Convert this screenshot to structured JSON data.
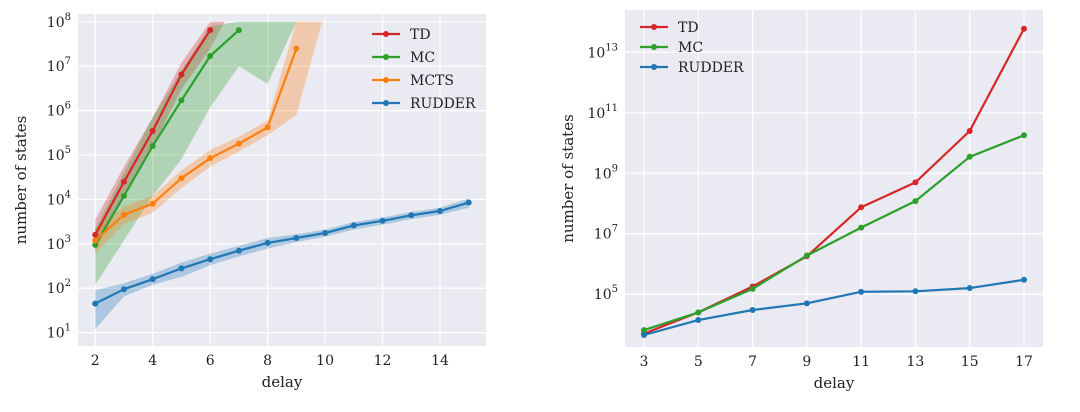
{
  "chart_data": [
    {
      "type": "line",
      "title": "",
      "xlabel": "delay",
      "ylabel": "number of states",
      "yscale": "log",
      "xlim": [
        1.4,
        15.6
      ],
      "ylim": [
        5,
        150000000
      ],
      "grid": true,
      "legend_position": "top-right",
      "xticks": [
        2,
        4,
        6,
        8,
        10,
        12,
        14
      ],
      "xtick_labels": [
        "2",
        "4",
        "6",
        "8",
        "10",
        "12",
        "14"
      ],
      "yticks": [
        10,
        100,
        1000,
        10000,
        100000,
        1000000,
        10000000,
        100000000
      ],
      "ytick_labels": [
        {
          "base": "10",
          "exp": "1"
        },
        {
          "base": "10",
          "exp": "2"
        },
        {
          "base": "10",
          "exp": "3"
        },
        {
          "base": "10",
          "exp": "4"
        },
        {
          "base": "10",
          "exp": "5"
        },
        {
          "base": "10",
          "exp": "6"
        },
        {
          "base": "10",
          "exp": "7"
        },
        {
          "base": "10",
          "exp": "8"
        }
      ],
      "series": [
        {
          "name": "TD",
          "color": "#d62728",
          "x": [
            2,
            3,
            4,
            5,
            6
          ],
          "y": [
            1600,
            25000,
            350000,
            6500000,
            65000000
          ],
          "band": {
            "x": [
              2,
              3,
              4,
              5,
              6,
              6.5,
              8
            ],
            "low": [
              700,
              12000,
              150000,
              3000000,
              25000000,
              100000000,
              100000000
            ],
            "high": [
              3500,
              55000,
              700000,
              12000000,
              100000000,
              100000000,
              100000000
            ]
          }
        },
        {
          "name": "MC",
          "color": "#2ca02c",
          "x": [
            2,
            3,
            4,
            5,
            6,
            7
          ],
          "y": [
            950,
            12000,
            160000,
            1700000,
            17000000,
            65000000
          ],
          "band": {
            "x": [
              2,
              3,
              4,
              5,
              6,
              7,
              8,
              9
            ],
            "low": [
              120,
              1200,
              12000,
              80000,
              1200000,
              10000000,
              4000000,
              100000000
            ],
            "high": [
              2200,
              40000,
              700000,
              8000000,
              80000000,
              100000000,
              100000000,
              100000000
            ]
          }
        },
        {
          "name": "MCTS",
          "color": "#ff7f0e",
          "x": [
            2,
            3,
            4,
            5,
            6,
            7,
            8,
            9
          ],
          "y": [
            1200,
            4500,
            8000,
            30000,
            85000,
            180000,
            420000,
            25000000
          ],
          "band": {
            "x": [
              2,
              3,
              4,
              5,
              6,
              7,
              8,
              9,
              9.9
            ],
            "low": [
              600,
              2800,
              5000,
              18000,
              55000,
              120000,
              280000,
              800000,
              100000000
            ],
            "high": [
              2200,
              7000,
              12000,
              45000,
              130000,
              260000,
              600000,
              100000000,
              100000000
            ]
          }
        },
        {
          "name": "RUDDER",
          "color": "#1f77b4",
          "x": [
            2,
            3,
            4,
            5,
            6,
            7,
            8,
            9,
            10,
            11,
            12,
            13,
            14,
            15
          ],
          "y": [
            45,
            95,
            160,
            280,
            450,
            700,
            1050,
            1350,
            1750,
            2600,
            3300,
            4400,
            5500,
            8500
          ],
          "band": {
            "x": [
              2,
              3,
              4,
              5,
              6,
              7,
              8,
              9,
              10,
              11,
              12,
              13,
              14,
              15
            ],
            "low": [
              12,
              65,
              120,
              180,
              330,
              520,
              780,
              1100,
              1450,
              2100,
              2700,
              3600,
              4500,
              6500
            ],
            "high": [
              90,
              130,
              210,
              380,
              600,
              900,
              1350,
              1650,
              2100,
              3100,
              3900,
              5200,
              6500,
              10500
            ]
          }
        }
      ]
    },
    {
      "type": "line",
      "title": "",
      "xlabel": "delay",
      "ylabel": "number of states",
      "yscale": "log",
      "xlim": [
        2.3,
        17.7
      ],
      "ylim": [
        1800,
        250000000000000
      ],
      "grid": true,
      "legend_position": "top-left",
      "xticks": [
        3,
        5,
        7,
        9,
        11,
        13,
        15,
        17
      ],
      "xtick_labels": [
        "3",
        "5",
        "7",
        "9",
        "11",
        "13",
        "15",
        "17"
      ],
      "yticks": [
        100000,
        10000000,
        1000000000,
        100000000000,
        10000000000000
      ],
      "ytick_labels": [
        {
          "base": "10",
          "exp": "5"
        },
        {
          "base": "10",
          "exp": "7"
        },
        {
          "base": "10",
          "exp": "9"
        },
        {
          "base": "10",
          "exp": "11"
        },
        {
          "base": "10",
          "exp": "13"
        }
      ],
      "series": [
        {
          "name": "TD",
          "color": "#d62728",
          "x": [
            3,
            5,
            7,
            9,
            11,
            13,
            15,
            17
          ],
          "y": [
            5000,
            25000,
            180000,
            1800000,
            75000000,
            500000000,
            25000000000,
            60000000000000
          ]
        },
        {
          "name": "MC",
          "color": "#2ca02c",
          "x": [
            3,
            5,
            7,
            9,
            11,
            13,
            15,
            17
          ],
          "y": [
            6500,
            25000,
            150000,
            1900000,
            16000000,
            120000000,
            3500000000,
            18000000000
          ]
        },
        {
          "name": "RUDDER",
          "color": "#1f77b4",
          "x": [
            3,
            5,
            7,
            9,
            11,
            13,
            15,
            17
          ],
          "y": [
            4500,
            14000,
            30000,
            50000,
            120000,
            125000,
            160000,
            300000
          ]
        }
      ]
    }
  ]
}
